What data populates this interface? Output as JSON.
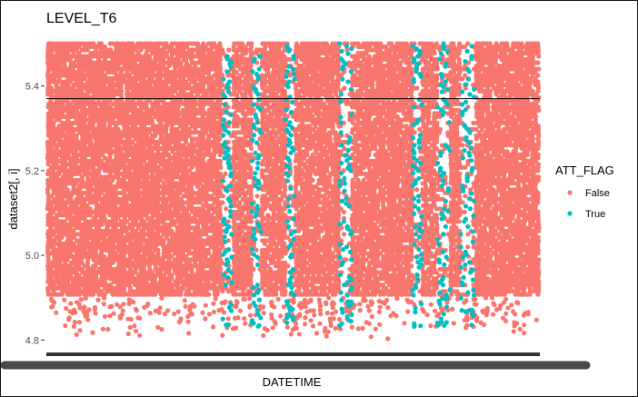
{
  "chart_data": {
    "type": "scatter",
    "title": "LEVEL_T6",
    "xlabel": "DATETIME",
    "ylabel": "dataset2[, i]",
    "ylim": [
      4.775,
      5.5
    ],
    "yticks": [
      4.8,
      5.0,
      5.2,
      5.4
    ],
    "ytick_labels": [
      "4.8",
      "5.0",
      "5.2",
      "5.4"
    ],
    "hline": 5.37,
    "grid": false,
    "legend": {
      "title": "ATT_FLAG",
      "position": "right",
      "entries": [
        {
          "label": "False",
          "color": "#F8766D"
        },
        {
          "label": "True",
          "color": "#00BFC4"
        }
      ]
    },
    "series": [
      {
        "name": "False",
        "color": "#F8766D",
        "dense_value_range": [
          4.9,
          5.5
        ],
        "sparse_value_range": [
          4.8,
          4.9
        ]
      },
      {
        "name": "True",
        "color": "#00BFC4",
        "value_range": [
          4.83,
          5.5
        ]
      }
    ]
  }
}
